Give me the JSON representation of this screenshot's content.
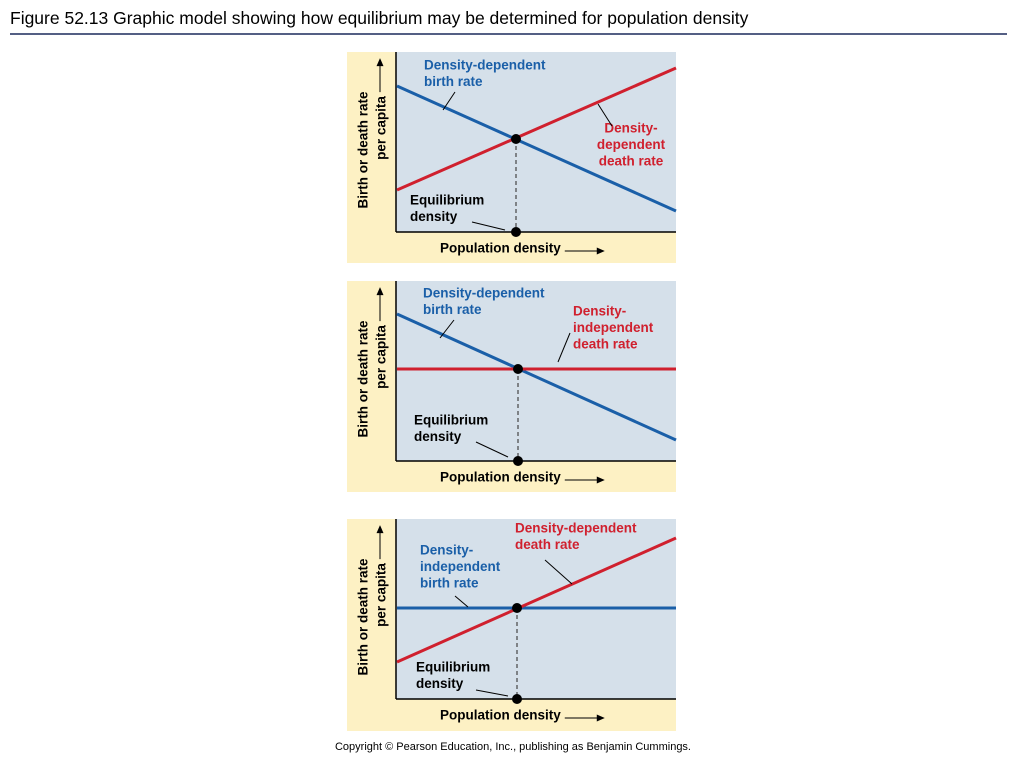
{
  "title": "Figure 52.13  Graphic model showing how equilibrium may be determined for population density",
  "panels": [
    {
      "birth_label": [
        "Density-dependent",
        "birth rate"
      ],
      "death_label": [
        "Density-",
        "dependent",
        "death rate"
      ],
      "equilibrium_label": [
        "Equilibrium",
        "density"
      ],
      "y_axis_label": [
        "Birth or death rate",
        "per capita"
      ],
      "x_axis_label": "Population density"
    },
    {
      "birth_label": [
        "Density-dependent",
        "birth rate"
      ],
      "death_label": [
        "Density-",
        "independent",
        "death rate"
      ],
      "equilibrium_label": [
        "Equilibrium",
        "density"
      ],
      "y_axis_label": [
        "Birth or death rate",
        "per capita"
      ],
      "x_axis_label": "Population density"
    },
    {
      "birth_label": [
        "Density-",
        "independent",
        "birth rate"
      ],
      "death_label": [
        "Density-dependent",
        "death rate"
      ],
      "equilibrium_label": [
        "Equilibrium",
        "density"
      ],
      "y_axis_label": [
        "Birth or death rate",
        "per capita"
      ],
      "x_axis_label": "Population density"
    }
  ],
  "copyright": "Copyright © Pearson Education, Inc., publishing as Benjamin Cummings."
}
